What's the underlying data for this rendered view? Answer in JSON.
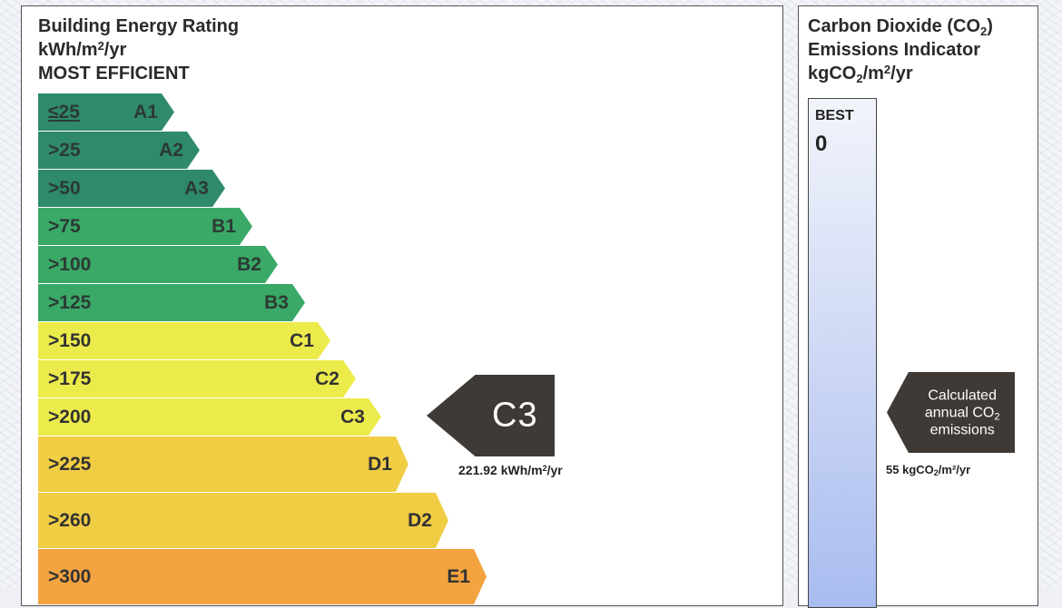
{
  "rating_panel": {
    "title_lines": [
      "Building Energy Rating",
      "kWh/m",
      "/yr",
      "MOST EFFICIENT"
    ],
    "unit_prefix": "kWh/m",
    "unit_sup": "2",
    "unit_suffix": "/yr"
  },
  "bands": [
    {
      "range": "≤25",
      "code": "A1",
      "color": "#2e8a6a",
      "text_color": "#2b3a33"
    },
    {
      "range": ">25",
      "code": "A2",
      "color": "#2e8a6a",
      "text_color": "#2b3a33"
    },
    {
      "range": ">50",
      "code": "A3",
      "color": "#2e8a6a",
      "text_color": "#2b3a33"
    },
    {
      "range": ">75",
      "code": "B1",
      "color": "#3aa867",
      "text_color": "#2b3a33"
    },
    {
      "range": ">100",
      "code": "B2",
      "color": "#3aa867",
      "text_color": "#2b3a33"
    },
    {
      "range": ">125",
      "code": "B3",
      "color": "#3aa867",
      "text_color": "#2b3a33"
    },
    {
      "range": ">150",
      "code": "C1",
      "color": "#eceb4c",
      "text_color": "#333"
    },
    {
      "range": ">175",
      "code": "C2",
      "color": "#eceb4c",
      "text_color": "#333"
    },
    {
      "range": ">200",
      "code": "C3",
      "color": "#eceb4c",
      "text_color": "#333"
    },
    {
      "range": ">225",
      "code": "D1",
      "color": "#f1cd44",
      "text_color": "#333"
    },
    {
      "range": ">260",
      "code": "D2",
      "color": "#f1cd44",
      "text_color": "#333"
    },
    {
      "range": ">300",
      "code": "E1",
      "color": "#f3a33f",
      "text_color": "#333"
    }
  ],
  "current_rating": {
    "code": "C3",
    "value": "221.92",
    "unit": "kWh/m",
    "unit_sup": "2",
    "unit_suffix": "/yr",
    "arrow_color": "#3f3a35"
  },
  "co2_panel": {
    "title_line1": "Carbon Dioxide (CO",
    "title_line1_sub": "2",
    "title_line1_end": ")",
    "title_line2": "Emissions Indicator",
    "title_line3_prefix": "kgCO",
    "title_line3_sub": "2",
    "title_line3_mid": "/m",
    "title_line3_sup": "2",
    "title_line3_end": "/yr",
    "best_label": "BEST",
    "best_value": "0",
    "arrow_line1": "Calculated",
    "arrow_line2_prefix": "annual CO",
    "arrow_line2_sub": "2",
    "arrow_line3": "emissions",
    "emissions_value": "55",
    "emissions_unit_prefix": "kgCO",
    "emissions_unit_sub": "2",
    "emissions_unit_suffix": "/m²/yr"
  }
}
